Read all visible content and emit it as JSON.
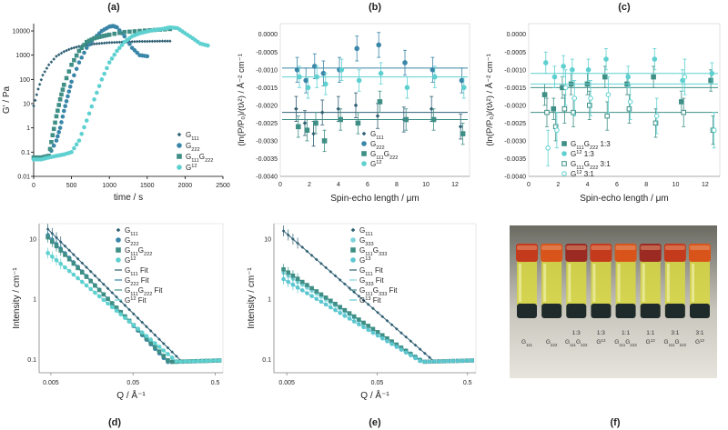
{
  "colors": {
    "g111": "#2f5f73",
    "g222": "#3a86a8",
    "mix": "#3f8f86",
    "g12": "#5fd0d0",
    "g333": "#7fd4dc",
    "g13": "#5cc6d0",
    "axis": "#000000",
    "text": "#222222"
  },
  "chart_data": [
    {
      "panel": "(a)",
      "type": "scatter",
      "xlabel": "time / s",
      "ylabel": "G′ / Pa",
      "xscale": "linear",
      "yscale": "log",
      "xlim": [
        0,
        2500
      ],
      "ylim": [
        0.01,
        20000
      ],
      "xticks": [
        "0",
        "500",
        "1000",
        "1500",
        "2000",
        "2500"
      ],
      "yticks": [
        "0.01",
        "0.1",
        "1",
        "10",
        "100",
        "1000",
        "10000"
      ],
      "legend_position": "bottom-right",
      "series": [
        {
          "name": "G111",
          "sub": "111",
          "base": "G",
          "color": "g111",
          "x": [
            0,
            60,
            120,
            200,
            300,
            400,
            500,
            600,
            700,
            800,
            900,
            1000,
            1100,
            1200,
            1300,
            1400,
            1500,
            1600,
            1700,
            1800
          ],
          "y": [
            8,
            40,
            150,
            400,
            900,
            1400,
            1900,
            2300,
            2600,
            2900,
            3100,
            3300,
            3400,
            3500,
            3600,
            3700,
            3700,
            3750,
            3800,
            3800
          ]
        },
        {
          "name": "G222",
          "sub": "222",
          "base": "G",
          "color": "g222",
          "x": [
            0,
            100,
            200,
            300,
            350,
            400,
            450,
            500,
            600,
            700,
            800,
            900,
            1000,
            1050,
            1100,
            1200,
            1300,
            1400,
            1500
          ],
          "y": [
            0.06,
            0.06,
            0.07,
            0.3,
            1,
            5,
            20,
            80,
            500,
            2000,
            5000,
            10000,
            15000,
            16000,
            14000,
            6000,
            2000,
            1000,
            900
          ]
        },
        {
          "name": "G111G222",
          "sub": "111",
          "base": "G",
          "base2": "G",
          "sub2": "222",
          "color": "mix",
          "x": [
            0,
            100,
            200,
            250,
            300,
            350,
            400,
            500,
            600,
            700,
            800,
            900,
            1000,
            1200,
            1400,
            1600,
            1800
          ],
          "y": [
            0.06,
            0.06,
            0.07,
            0.5,
            3,
            15,
            60,
            400,
            1500,
            3500,
            5000,
            6000,
            7000,
            9000,
            10000,
            11000,
            12000
          ]
        },
        {
          "name": "G12",
          "sup": "12",
          "base": "G",
          "color": "g12",
          "x": [
            0,
            100,
            200,
            300,
            400,
            500,
            600,
            700,
            800,
            900,
            1000,
            1100,
            1200,
            1300,
            1400,
            1500,
            1600,
            1700,
            1800,
            1900,
            2000,
            2100,
            2200,
            2300
          ],
          "y": [
            0.05,
            0.05,
            0.06,
            0.07,
            0.08,
            0.1,
            0.3,
            2,
            15,
            100,
            500,
            1500,
            3500,
            6000,
            8000,
            9500,
            11000,
            12000,
            14000,
            13000,
            8000,
            5000,
            3000,
            2500
          ]
        }
      ]
    },
    {
      "panel": "(b)",
      "type": "scatter",
      "xlabel": "Spin-echo length / μm",
      "ylabel": "(ln(P/P₀)/(tλ²) / Å⁻² cm⁻¹",
      "xlim": [
        0,
        13
      ],
      "ylim": [
        -0.004,
        0.0003
      ],
      "xticks": [
        "0",
        "2",
        "4",
        "6",
        "8",
        "10",
        "12"
      ],
      "yticks": [
        "0.0000",
        "-0.0005",
        "-0.0010",
        "-0.0015",
        "-0.0020",
        "-0.0025",
        "-0.0030",
        "-0.0035",
        "-0.0040"
      ],
      "legend_position": "bottom-right",
      "series": [
        {
          "name": "G111",
          "sub": "111",
          "base": "G",
          "color": "g111",
          "fit": -0.0022,
          "err": 0.00035,
          "x": [
            1.2,
            1.8,
            2.4,
            3.0,
            4.1,
            5.3,
            6.8,
            8.6,
            10.5,
            12.5
          ],
          "y": [
            -0.0021,
            -0.0025,
            -0.0028,
            -0.0022,
            -0.0021,
            -0.002,
            -0.0023,
            -0.0024,
            -0.0021,
            -0.0026
          ]
        },
        {
          "name": "G222",
          "sub": "222",
          "base": "G",
          "color": "g222",
          "fit": -0.00095,
          "err": 0.00035,
          "x": [
            1.2,
            1.8,
            2.4,
            3.0,
            4.1,
            5.3,
            6.8,
            8.6,
            10.5,
            12.5
          ],
          "y": [
            -0.001,
            -0.0013,
            -0.0009,
            -0.0011,
            -0.001,
            -0.0004,
            -0.0003,
            -0.0008,
            -0.001,
            -0.0013
          ]
        },
        {
          "name": "G111G222",
          "sub": "111",
          "base": "G",
          "base2": "G",
          "sub2": "222",
          "color": "mix",
          "fit": -0.0024,
          "err": 0.0003,
          "x": [
            1.2,
            1.8,
            2.4,
            3.0,
            4.1,
            5.3,
            6.8,
            8.6,
            10.5,
            12.5
          ],
          "y": [
            -0.0026,
            -0.0027,
            -0.0025,
            -0.003,
            -0.0024,
            -0.0025,
            -0.0019,
            -0.0024,
            -0.0024,
            -0.0028
          ]
        },
        {
          "name": "G12",
          "sup": "12",
          "base": "G",
          "color": "g12",
          "fit": -0.0012,
          "err": 0.0003,
          "x": [
            1.2,
            1.8,
            2.4,
            3.0,
            4.1,
            5.3,
            6.8,
            8.6,
            10.5,
            12.5
          ],
          "y": [
            -0.0012,
            -0.0015,
            -0.0012,
            -0.0014,
            -0.001,
            -0.0013,
            -0.0011,
            -0.0015,
            -0.0012,
            -0.0015
          ]
        }
      ]
    },
    {
      "panel": "(c)",
      "type": "scatter",
      "xlabel": "Spin-echo length / μm",
      "ylabel": "(ln(P/P₀)/(tλ²) / Å⁻² cm⁻¹",
      "xlim": [
        0,
        13
      ],
      "ylim": [
        -0.004,
        0.0003
      ],
      "xticks": [
        "0",
        "2",
        "4",
        "6",
        "8",
        "10",
        "12"
      ],
      "yticks": [
        "0.0000",
        "-0.0005",
        "-0.0010",
        "-0.0015",
        "-0.0020",
        "-0.0025",
        "-0.0030",
        "-0.0035",
        "-0.0040"
      ],
      "legend_position": "bottom-right",
      "series": [
        {
          "name": "G111G222 1:3",
          "sub": "111",
          "base": "G",
          "base2": "G",
          "sub2": "222",
          "tail": " 1:3",
          "color": "mix",
          "open": false,
          "fit": -0.0015,
          "err": 0.0003,
          "x": [
            1.2,
            1.8,
            2.4,
            3.0,
            4.1,
            5.3,
            6.8,
            8.6,
            10.5,
            12.5
          ],
          "y": [
            -0.0017,
            -0.0021,
            -0.0015,
            -0.0014,
            -0.0014,
            -0.0012,
            -0.0014,
            -0.0012,
            -0.0019,
            -0.0013
          ]
        },
        {
          "name": "G12 1:3",
          "sup": "12",
          "base": "G",
          "tail": " 1:3",
          "color": "g12",
          "open": false,
          "fit": -0.0011,
          "err": 0.0003,
          "x": [
            1.2,
            1.8,
            2.4,
            3.0,
            4.1,
            5.3,
            6.8,
            8.6,
            10.5,
            12.5
          ],
          "y": [
            -0.0008,
            -0.0012,
            -0.0009,
            -0.001,
            -0.001,
            -0.0007,
            -0.0012,
            -0.0007,
            -0.0013,
            -0.0011
          ]
        },
        {
          "name": "G111G222 3:1",
          "sub": "111",
          "base": "G",
          "base2": "G",
          "sub2": "222",
          "tail": " 3:1",
          "color": "mix",
          "open": true,
          "fit": -0.0022,
          "err": 0.0004,
          "x": [
            1.2,
            1.8,
            2.4,
            3.0,
            4.1,
            5.3,
            6.8,
            8.6,
            10.5,
            12.5
          ],
          "y": [
            -0.0022,
            -0.0026,
            -0.0021,
            -0.0022,
            -0.002,
            -0.0023,
            -0.0021,
            -0.0025,
            -0.0022,
            -0.0027
          ]
        },
        {
          "name": "G12 3:1",
          "sup": "12",
          "base": "G",
          "tail": " 3:1",
          "color": "g12",
          "open": true,
          "fit": -0.0014,
          "err": 0.0005,
          "x": [
            1.2,
            1.8,
            2.4,
            3.0,
            4.1,
            5.3,
            6.8,
            8.6,
            10.5,
            12.5
          ],
          "y": [
            -0.0032,
            -0.0027,
            -0.0015,
            -0.0018,
            -0.0018,
            -0.0017,
            -0.0019,
            -0.0023,
            -0.0012,
            -0.0027
          ]
        }
      ]
    },
    {
      "panel": "(d)",
      "type": "scatter",
      "xlabel": "Q / Å⁻¹",
      "ylabel": "Intensity / cm⁻¹",
      "xscale": "log",
      "yscale": "log",
      "xlim": [
        0.0036,
        0.62
      ],
      "ylim": [
        0.06,
        18
      ],
      "xticks": [
        "0.005",
        "0.05",
        "0.5"
      ],
      "yticks": [
        "0.1",
        "1",
        "10"
      ],
      "legend_position": "top-right",
      "series": [
        {
          "name": "G111",
          "sub": "111",
          "base": "G",
          "color": "g111",
          "params": [
            15,
            0.0045,
            1.35
          ]
        },
        {
          "name": "G222",
          "sub": "222",
          "base": "G",
          "color": "g222",
          "params": [
            12,
            0.0045,
            1.45
          ]
        },
        {
          "name": "G111G222",
          "sub": "111",
          "base": "G",
          "base2": "G",
          "sub2": "222",
          "color": "mix",
          "params": [
            11,
            0.0045,
            1.4
          ]
        },
        {
          "name": "G12",
          "sup": "12",
          "base": "G",
          "color": "g12",
          "params": [
            6,
            0.0045,
            1.15
          ]
        }
      ],
      "fits": [
        {
          "name": "G111 Fit",
          "sub": "111",
          "base": "G",
          "tail": " Fit",
          "color": "g111"
        },
        {
          "name": "G222 Fit",
          "sub": "222",
          "base": "G",
          "tail": " Fit",
          "color": "g222"
        },
        {
          "name": "G111G222 Fit",
          "sub": "111",
          "base": "G",
          "base2": "G",
          "sub2": "222",
          "tail": " Fit",
          "color": "mix"
        },
        {
          "name": "G12 Fit",
          "sup": "12",
          "base": "G",
          "tail": " Fit",
          "color": "g12"
        }
      ]
    },
    {
      "panel": "(e)",
      "type": "scatter",
      "xlabel": "Q / Å⁻¹",
      "ylabel": "Intensity / cm⁻¹",
      "xscale": "log",
      "yscale": "log",
      "xlim": [
        0.0036,
        0.62
      ],
      "ylim": [
        0.06,
        18
      ],
      "xticks": [
        "0.005",
        "0.05",
        "0.5"
      ],
      "yticks": [
        "0.1",
        "1",
        "10"
      ],
      "legend_position": "top-right",
      "series": [
        {
          "name": "G111",
          "sub": "111",
          "base": "G",
          "color": "g111",
          "params": [
            14,
            0.0045,
            1.3
          ]
        },
        {
          "name": "G333",
          "sub": "333",
          "base": "G",
          "color": "g333",
          "params": [
            2.8,
            0.0045,
            0.95
          ]
        },
        {
          "name": "G111G333",
          "sub": "111",
          "base": "G",
          "base2": "G",
          "sub2": "333",
          "color": "mix",
          "params": [
            3.2,
            0.0045,
            1.0
          ]
        },
        {
          "name": "G13",
          "sup": "13",
          "base": "G",
          "color": "g13",
          "params": [
            2.2,
            0.0045,
            0.9
          ]
        }
      ],
      "fits": [
        {
          "name": "G111 Fit",
          "sub": "111",
          "base": "G",
          "tail": " Fit",
          "color": "g111"
        },
        {
          "name": "G333 Fit",
          "sub": "333",
          "base": "G",
          "tail": " Fit",
          "color": "g333"
        },
        {
          "name": "G111G333 Fit",
          "sub": "111",
          "base": "G",
          "base2": "G",
          "sub2": "333",
          "tail": " Fit",
          "color": "mix"
        },
        {
          "name": "G13 Fit",
          "sup": "13",
          "base": "G",
          "tail": " Fit",
          "color": "g13"
        }
      ]
    }
  ],
  "photo": {
    "panel": "(f)",
    "vial_labels": [
      {
        "text": "G111",
        "sub": "111",
        "base": "G"
      },
      {
        "text": "G222",
        "sub": "222",
        "base": "G"
      },
      {
        "text": "1:3 G111G222",
        "top": "1:3",
        "sub": "111",
        "base": "G",
        "base2": "G",
        "sub2": "222"
      },
      {
        "text": "1:3 G12",
        "top": "1:3",
        "sup": "12",
        "base": "G"
      },
      {
        "text": "1:1 G111G222",
        "top": "1:1",
        "sub": "111",
        "base": "G",
        "base2": "G",
        "sub2": "222"
      },
      {
        "text": "1:1 G12",
        "top": "1:1",
        "sup": "12",
        "base": "G"
      },
      {
        "text": "3:1 G111G222",
        "top": "3:1",
        "sub": "111",
        "base": "G",
        "base2": "G",
        "sub2": "222"
      },
      {
        "text": "3:1 G12",
        "top": "3:1",
        "sup": "12",
        "base": "G"
      }
    ]
  }
}
